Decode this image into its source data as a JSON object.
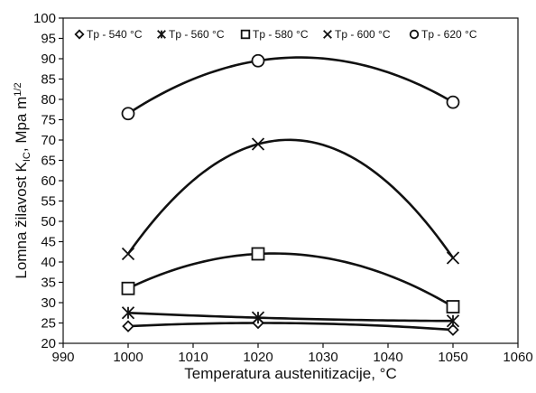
{
  "chart_data": {
    "type": "scatter",
    "title": "",
    "xlabel": "Temperatura austenitizacije, °C",
    "ylabel": "Lomna žilavost K",
    "ylabel_sub": "IC",
    "ylabel_tail": ", Mpa m",
    "ylabel_sup": "1/2",
    "xlim": [
      990,
      1060
    ],
    "ylim": [
      20,
      100
    ],
    "x_ticks": [
      990,
      1000,
      1010,
      1020,
      1030,
      1040,
      1050,
      1060
    ],
    "y_ticks": [
      20,
      25,
      30,
      35,
      40,
      45,
      50,
      55,
      60,
      65,
      70,
      75,
      80,
      85,
      90,
      95,
      100
    ],
    "grid": false,
    "legend_position": "top",
    "fit_lines": "smooth curves through each series",
    "series": [
      {
        "name": "Tp - 540 °C",
        "marker": "diamond",
        "x": [
          1000,
          1020,
          1050
        ],
        "y": [
          24.2,
          25.0,
          23.3
        ]
      },
      {
        "name": "Tp - 560 °C",
        "marker": "asterisk",
        "x": [
          1000,
          1020,
          1050
        ],
        "y": [
          27.5,
          26.3,
          25.5
        ]
      },
      {
        "name": "Tp - 580 °C",
        "marker": "square",
        "x": [
          1000,
          1020,
          1050
        ],
        "y": [
          33.5,
          42.0,
          29.0
        ]
      },
      {
        "name": "Tp - 600 °C",
        "marker": "cross",
        "x": [
          1000,
          1020,
          1050
        ],
        "y": [
          42.0,
          69.0,
          41.0
        ]
      },
      {
        "name": "Tp - 620 °C",
        "marker": "circle",
        "x": [
          1000,
          1020,
          1050
        ],
        "y": [
          76.5,
          89.5,
          79.3
        ]
      }
    ]
  }
}
